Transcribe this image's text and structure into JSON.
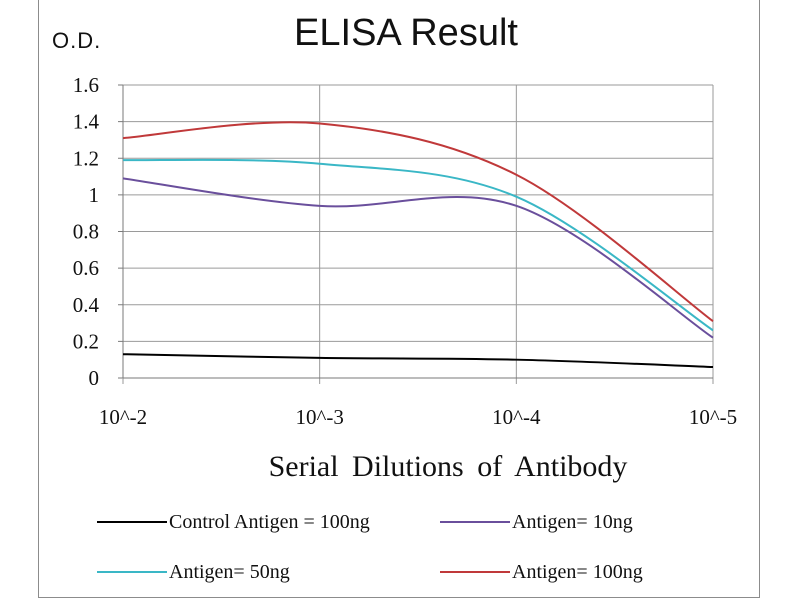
{
  "chart_data": {
    "type": "line",
    "title": "ELISA Result",
    "ylabel": "O.D.",
    "xlabel": "Serial Dilutions  of Antibody",
    "x_tick_labels": [
      "10^-2",
      "10^-3",
      "10^-4",
      "10^-5"
    ],
    "y_tick_labels": [
      "0",
      "0.2",
      "0.4",
      "0.6",
      "0.8",
      "1",
      "1.2",
      "1.4",
      "1.6"
    ],
    "ylim": [
      0,
      1.6
    ],
    "x_scale": "log (dilution decreasing left to right)",
    "grid": "major gridlines on both axes",
    "legend_position": "bottom",
    "x": [
      "10^-2",
      "10^-3",
      "10^-4",
      "10^-5"
    ],
    "series": [
      {
        "name": "Control Antigen = 100ng",
        "color": "#000000",
        "values": [
          0.13,
          0.11,
          0.1,
          0.06
        ]
      },
      {
        "name": "Antigen= 10ng",
        "color": "#6a4f9c",
        "values": [
          1.09,
          0.94,
          0.94,
          0.22
        ]
      },
      {
        "name": "Antigen= 50ng",
        "color": "#3ab7c6",
        "values": [
          1.19,
          1.17,
          0.99,
          0.26
        ]
      },
      {
        "name": "Antigen= 100ng",
        "color": "#c0393a",
        "values": [
          1.31,
          1.39,
          1.11,
          0.31
        ]
      }
    ]
  }
}
